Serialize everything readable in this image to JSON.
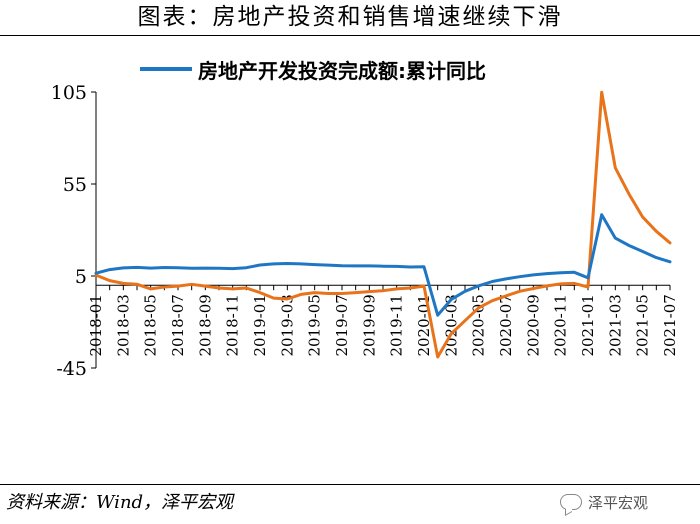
{
  "header": {
    "title": "图表：房地产投资和销售增速继续下滑"
  },
  "footer": {
    "source": "资料来源：Wind，泽平宏观",
    "watermark": "泽平宏观"
  },
  "chart_data": {
    "type": "line",
    "title": "图表：房地产投资和销售增速继续下滑",
    "xlabel": "",
    "ylabel": "",
    "ylim": [
      -45,
      105
    ],
    "yticks": [
      105,
      55,
      5,
      -45
    ],
    "grid": false,
    "legend_position": "top",
    "categories": [
      "2018-01",
      "2018-02",
      "2018-03",
      "2018-04",
      "2018-05",
      "2018-06",
      "2018-07",
      "2018-08",
      "2018-09",
      "2018-10",
      "2018-11",
      "2018-12",
      "2019-01",
      "2019-02",
      "2019-03",
      "2019-04",
      "2019-05",
      "2019-06",
      "2019-07",
      "2019-08",
      "2019-09",
      "2019-10",
      "2019-11",
      "2019-12",
      "2020-01",
      "2020-02",
      "2020-03",
      "2020-04",
      "2020-05",
      "2020-06",
      "2020-07",
      "2020-08",
      "2020-09",
      "2020-10",
      "2020-11",
      "2020-12",
      "2021-01",
      "2021-02",
      "2021-03",
      "2021-04",
      "2021-05",
      "2021-06",
      "2021-07"
    ],
    "tick_labels": [
      "2018-01",
      "2018-03",
      "2018-05",
      "2018-07",
      "2018-09",
      "2018-11",
      "2019-01",
      "2019-03",
      "2019-05",
      "2019-07",
      "2019-09",
      "2019-11",
      "2020-01",
      "2020-03",
      "2020-05",
      "2020-07",
      "2020-09",
      "2020-11",
      "2021-01",
      "2021-03",
      "2021-05",
      "2021-07"
    ],
    "series": [
      {
        "name": "房地产开发投资完成额:累计同比",
        "color": "#1f77c4",
        "values": [
          6.5,
          8.5,
          9.4,
          9.7,
          9.3,
          9.6,
          9.5,
          9.2,
          9.3,
          9.2,
          9.0,
          9.5,
          11.0,
          11.6,
          11.8,
          11.6,
          11.2,
          10.9,
          10.6,
          10.5,
          10.5,
          10.3,
          10.2,
          9.9,
          10.0,
          -16.3,
          -7.7,
          -3.3,
          -0.3,
          2.0,
          3.4,
          4.6,
          5.6,
          6.3,
          6.8,
          7.0,
          4.0,
          38.3,
          25.6,
          21.6,
          18.3,
          15.0,
          12.7
        ]
      },
      {
        "name": "",
        "color": "#e8731a",
        "values": [
          5.5,
          2.5,
          1.0,
          0.5,
          -2.0,
          -1.0,
          -0.5,
          0.5,
          -0.5,
          -1.5,
          -2.0,
          -1.5,
          -4.0,
          -7.0,
          -7.5,
          -5.0,
          -4.0,
          -4.5,
          -4.5,
          -4.0,
          -3.5,
          -3.0,
          -2.0,
          -1.5,
          -0.5,
          -39.0,
          -26.3,
          -19.3,
          -12.3,
          -8.4,
          -5.8,
          -3.3,
          -1.8,
          -0.4,
          0.7,
          1.0,
          -1.0,
          104.9,
          63.8,
          49.5,
          37.0,
          29.3,
          23.0
        ]
      }
    ]
  }
}
